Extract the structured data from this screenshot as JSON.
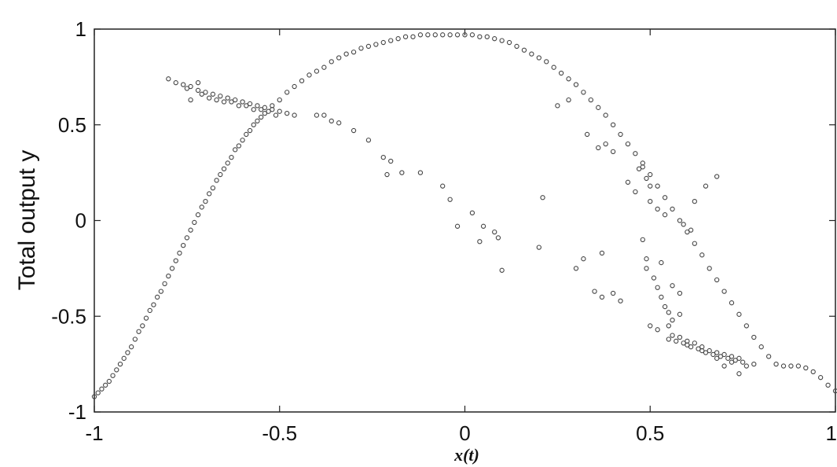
{
  "chart_data": {
    "type": "scatter",
    "title": "",
    "xlabel": "x(t)",
    "ylabel": "Total output y",
    "xlim": [
      -1,
      1
    ],
    "ylim": [
      -1,
      1
    ],
    "x_ticks": [
      -1,
      -0.5,
      0,
      0.5,
      1
    ],
    "x_tick_labels": [
      "-1",
      "-0.5",
      "0",
      "0.5",
      "1"
    ],
    "y_ticks": [
      -1,
      -0.5,
      0,
      0.5,
      1
    ],
    "y_tick_labels": [
      "-1",
      "-0.5",
      "0",
      "0.5",
      "1"
    ],
    "grid": false,
    "legend": "none",
    "marker": "open-circle",
    "marker_color": "#444444",
    "series": [
      {
        "points": [
          [
            -1.0,
            -0.92
          ],
          [
            -0.98,
            -0.88
          ],
          [
            -0.96,
            -0.84
          ],
          [
            -0.94,
            -0.78
          ],
          [
            -0.92,
            -0.72
          ],
          [
            -0.9,
            -0.66
          ],
          [
            -0.88,
            -0.58
          ],
          [
            -0.86,
            -0.51
          ],
          [
            -0.84,
            -0.44
          ],
          [
            -0.82,
            -0.37
          ],
          [
            -0.8,
            -0.29
          ],
          [
            -0.78,
            -0.21
          ],
          [
            -0.76,
            -0.13
          ],
          [
            -0.74,
            -0.05
          ],
          [
            -0.72,
            0.03
          ],
          [
            -0.7,
            0.1
          ],
          [
            -0.68,
            0.17
          ],
          [
            -0.66,
            0.24
          ],
          [
            -0.64,
            0.3
          ],
          [
            -0.62,
            0.37
          ],
          [
            -0.6,
            0.42
          ],
          [
            -0.58,
            0.47
          ],
          [
            -0.56,
            0.52
          ],
          [
            -0.54,
            0.56
          ],
          [
            -0.52,
            0.6
          ],
          [
            -0.5,
            0.63
          ],
          [
            -0.48,
            0.67
          ],
          [
            -0.46,
            0.7
          ],
          [
            -0.44,
            0.73
          ],
          [
            -0.42,
            0.76
          ],
          [
            -0.4,
            0.78
          ],
          [
            -0.38,
            0.8
          ],
          [
            -0.36,
            0.83
          ],
          [
            -0.34,
            0.85
          ],
          [
            -0.32,
            0.87
          ],
          [
            -0.3,
            0.88
          ],
          [
            -0.28,
            0.9
          ],
          [
            -0.26,
            0.91
          ],
          [
            -0.24,
            0.92
          ],
          [
            -0.22,
            0.93
          ],
          [
            -0.2,
            0.94
          ],
          [
            -0.18,
            0.95
          ],
          [
            -0.16,
            0.96
          ],
          [
            -0.14,
            0.96
          ],
          [
            -0.12,
            0.97
          ],
          [
            -0.1,
            0.97
          ],
          [
            -0.08,
            0.97
          ],
          [
            -0.06,
            0.97
          ],
          [
            -0.04,
            0.97
          ],
          [
            -0.02,
            0.97
          ],
          [
            0.0,
            0.97
          ],
          [
            0.02,
            0.97
          ],
          [
            0.04,
            0.96
          ],
          [
            0.06,
            0.96
          ],
          [
            0.08,
            0.95
          ],
          [
            0.1,
            0.94
          ],
          [
            0.12,
            0.93
          ],
          [
            0.14,
            0.91
          ],
          [
            0.16,
            0.89
          ],
          [
            0.18,
            0.87
          ],
          [
            0.2,
            0.85
          ],
          [
            0.22,
            0.83
          ],
          [
            0.24,
            0.8
          ],
          [
            0.26,
            0.77
          ],
          [
            0.28,
            0.74
          ],
          [
            0.3,
            0.71
          ],
          [
            0.32,
            0.67
          ],
          [
            0.34,
            0.63
          ],
          [
            0.36,
            0.59
          ],
          [
            0.38,
            0.55
          ],
          [
            0.4,
            0.5
          ],
          [
            0.42,
            0.45
          ],
          [
            0.44,
            0.4
          ],
          [
            0.46,
            0.35
          ],
          [
            0.48,
            0.3
          ],
          [
            0.5,
            0.24
          ],
          [
            0.52,
            0.18
          ],
          [
            0.54,
            0.12
          ],
          [
            0.56,
            0.06
          ],
          [
            0.58,
            0.0
          ],
          [
            0.6,
            -0.06
          ],
          [
            0.62,
            -0.12
          ],
          [
            0.64,
            -0.18
          ],
          [
            0.66,
            -0.25
          ],
          [
            0.68,
            -0.31
          ],
          [
            0.7,
            -0.37
          ],
          [
            0.72,
            -0.43
          ],
          [
            0.74,
            -0.49
          ],
          [
            0.76,
            -0.55
          ],
          [
            0.78,
            -0.61
          ],
          [
            0.8,
            -0.66
          ],
          [
            0.82,
            -0.71
          ],
          [
            0.84,
            -0.75
          ],
          [
            0.86,
            -0.76
          ],
          [
            0.88,
            -0.76
          ],
          [
            0.9,
            -0.76
          ],
          [
            0.92,
            -0.77
          ],
          [
            0.94,
            -0.79
          ],
          [
            0.96,
            -0.82
          ],
          [
            0.98,
            -0.86
          ],
          [
            1.0,
            -0.89
          ],
          [
            -0.99,
            -0.9
          ],
          [
            -0.97,
            -0.86
          ],
          [
            -0.95,
            -0.81
          ],
          [
            -0.93,
            -0.75
          ],
          [
            -0.91,
            -0.69
          ],
          [
            -0.89,
            -0.62
          ],
          [
            -0.87,
            -0.55
          ],
          [
            -0.85,
            -0.47
          ],
          [
            -0.83,
            -0.4
          ],
          [
            -0.81,
            -0.33
          ],
          [
            -0.79,
            -0.25
          ],
          [
            -0.77,
            -0.17
          ],
          [
            -0.75,
            -0.09
          ],
          [
            -0.73,
            -0.01
          ],
          [
            -0.71,
            0.07
          ],
          [
            -0.69,
            0.14
          ],
          [
            -0.67,
            0.21
          ],
          [
            -0.65,
            0.27
          ],
          [
            -0.63,
            0.33
          ],
          [
            -0.61,
            0.39
          ],
          [
            -0.59,
            0.45
          ],
          [
            -0.57,
            0.5
          ],
          [
            -0.55,
            0.54
          ],
          [
            -0.8,
            0.74
          ],
          [
            -0.78,
            0.72
          ],
          [
            -0.76,
            0.71
          ],
          [
            -0.74,
            0.7
          ],
          [
            -0.72,
            0.68
          ],
          [
            -0.7,
            0.67
          ],
          [
            -0.68,
            0.66
          ],
          [
            -0.66,
            0.65
          ],
          [
            -0.64,
            0.64
          ],
          [
            -0.62,
            0.63
          ],
          [
            -0.6,
            0.62
          ],
          [
            -0.58,
            0.61
          ],
          [
            -0.56,
            0.6
          ],
          [
            -0.54,
            0.59
          ],
          [
            -0.52,
            0.58
          ],
          [
            -0.5,
            0.57
          ],
          [
            -0.48,
            0.56
          ],
          [
            -0.46,
            0.55
          ],
          [
            -0.75,
            0.69
          ],
          [
            -0.71,
            0.66
          ],
          [
            -0.69,
            0.64
          ],
          [
            -0.67,
            0.63
          ],
          [
            -0.65,
            0.62
          ],
          [
            -0.63,
            0.62
          ],
          [
            -0.61,
            0.6
          ],
          [
            -0.59,
            0.6
          ],
          [
            -0.57,
            0.58
          ],
          [
            -0.55,
            0.58
          ],
          [
            -0.53,
            0.57
          ],
          [
            -0.51,
            0.55
          ],
          [
            -0.74,
            0.63
          ],
          [
            -0.72,
            0.72
          ],
          [
            0.55,
            -0.62
          ],
          [
            0.57,
            -0.63
          ],
          [
            0.59,
            -0.64
          ],
          [
            0.61,
            -0.66
          ],
          [
            0.63,
            -0.67
          ],
          [
            0.65,
            -0.69
          ],
          [
            0.67,
            -0.7
          ],
          [
            0.69,
            -0.71
          ],
          [
            0.71,
            -0.72
          ],
          [
            0.73,
            -0.73
          ],
          [
            0.75,
            -0.74
          ],
          [
            0.56,
            -0.6
          ],
          [
            0.58,
            -0.61
          ],
          [
            0.6,
            -0.63
          ],
          [
            0.62,
            -0.64
          ],
          [
            0.64,
            -0.66
          ],
          [
            0.66,
            -0.68
          ],
          [
            0.68,
            -0.69
          ],
          [
            0.7,
            -0.7
          ],
          [
            0.72,
            -0.71
          ],
          [
            0.74,
            -0.72
          ],
          [
            0.6,
            -0.65
          ],
          [
            0.64,
            -0.68
          ],
          [
            0.68,
            -0.72
          ],
          [
            0.72,
            -0.74
          ],
          [
            0.76,
            -0.76
          ],
          [
            0.78,
            -0.75
          ],
          [
            0.7,
            -0.76
          ],
          [
            0.74,
            -0.8
          ],
          [
            -0.4,
            0.55
          ],
          [
            -0.38,
            0.55
          ],
          [
            -0.36,
            0.52
          ],
          [
            -0.34,
            0.51
          ],
          [
            -0.3,
            0.47
          ],
          [
            -0.26,
            0.42
          ],
          [
            -0.22,
            0.33
          ],
          [
            -0.2,
            0.31
          ],
          [
            -0.21,
            0.24
          ],
          [
            -0.17,
            0.25
          ],
          [
            -0.12,
            0.25
          ],
          [
            -0.06,
            0.18
          ],
          [
            -0.04,
            0.11
          ],
          [
            0.02,
            0.04
          ],
          [
            0.05,
            -0.03
          ],
          [
            0.08,
            -0.06
          ],
          [
            0.09,
            -0.09
          ],
          [
            -0.02,
            -0.03
          ],
          [
            0.04,
            -0.11
          ],
          [
            0.2,
            -0.14
          ],
          [
            0.21,
            0.12
          ],
          [
            0.1,
            -0.26
          ],
          [
            0.3,
            -0.25
          ],
          [
            0.32,
            -0.2
          ],
          [
            0.37,
            -0.17
          ],
          [
            0.35,
            -0.37
          ],
          [
            0.37,
            -0.4
          ],
          [
            0.4,
            -0.38
          ],
          [
            0.42,
            -0.42
          ],
          [
            0.48,
            0.28
          ],
          [
            0.49,
            0.22
          ],
          [
            0.5,
            0.18
          ],
          [
            0.5,
            0.1
          ],
          [
            0.52,
            0.06
          ],
          [
            0.54,
            0.03
          ],
          [
            0.49,
            -0.2
          ],
          [
            0.49,
            -0.25
          ],
          [
            0.51,
            -0.3
          ],
          [
            0.52,
            -0.35
          ],
          [
            0.53,
            -0.4
          ],
          [
            0.54,
            -0.45
          ],
          [
            0.55,
            -0.48
          ],
          [
            0.56,
            -0.52
          ],
          [
            0.52,
            -0.57
          ],
          [
            0.55,
            -0.55
          ],
          [
            0.53,
            -0.22
          ],
          [
            0.56,
            -0.34
          ],
          [
            0.58,
            -0.38
          ],
          [
            0.58,
            -0.49
          ],
          [
            0.5,
            -0.55
          ],
          [
            0.61,
            -0.05
          ],
          [
            0.59,
            -0.02
          ],
          [
            0.62,
            0.1
          ],
          [
            0.65,
            0.18
          ],
          [
            0.68,
            0.23
          ],
          [
            0.47,
            0.27
          ],
          [
            0.46,
            0.15
          ],
          [
            0.44,
            0.2
          ],
          [
            0.4,
            0.36
          ],
          [
            0.38,
            0.4
          ],
          [
            0.48,
            -0.1
          ],
          [
            0.25,
            0.6
          ],
          [
            0.28,
            0.63
          ],
          [
            0.33,
            0.45
          ],
          [
            0.36,
            0.38
          ]
        ]
      }
    ]
  }
}
